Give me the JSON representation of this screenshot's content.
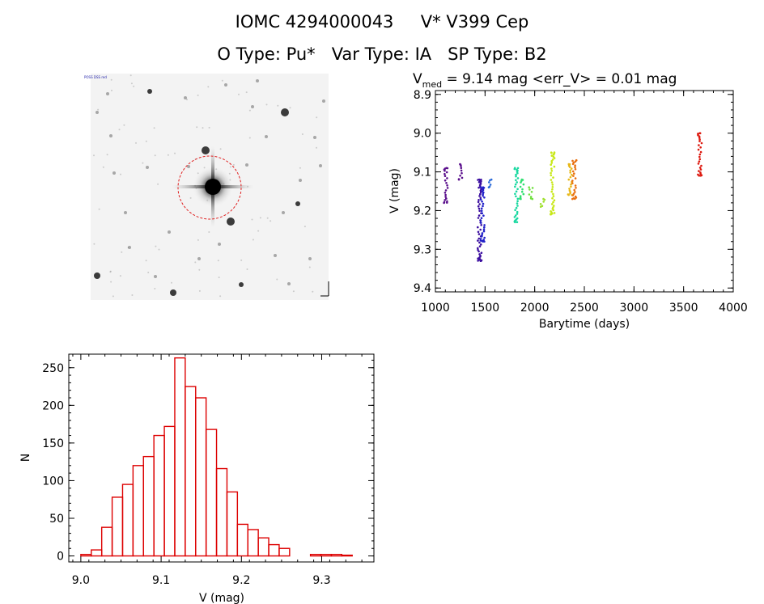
{
  "header": {
    "line1": "IOMC 4294000043     V* V399 Cep",
    "line2": "O Type: Pu*   Var Type: IA   SP Type: B2"
  },
  "image": {
    "corner_top_left": "POSS DSS red",
    "label_top": "",
    "label_bottom": "",
    "label_bottom_left": "",
    "label_bottom_right": ""
  },
  "chart_data": [
    {
      "type": "scatter",
      "title_prefix": "V",
      "title_sub": "med",
      "title_rest": " = 9.14 mag <err_V> = 0.01 mag",
      "xlabel": "Barytime (days)",
      "ylabel": "V (mag)",
      "xlim": [
        1000,
        4000
      ],
      "ylim": [
        9.41,
        8.89
      ],
      "xticks": [
        1000,
        1500,
        2000,
        2500,
        3000,
        3500,
        4000
      ],
      "yticks": [
        8.9,
        9.0,
        9.1,
        9.2,
        9.3,
        9.4
      ],
      "clusters": [
        {
          "x": 1105,
          "ymin": 9.09,
          "ymax": 9.18,
          "color": "#5a0f8c"
        },
        {
          "x": 1255,
          "ymin": 9.08,
          "ymax": 9.12,
          "color": "#5a0f8c"
        },
        {
          "x": 1445,
          "ymin": 9.12,
          "ymax": 9.33,
          "color": "#3c0fa0"
        },
        {
          "x": 1475,
          "ymin": 9.14,
          "ymax": 9.28,
          "color": "#2020c8"
        },
        {
          "x": 1555,
          "ymin": 9.12,
          "ymax": 9.14,
          "color": "#2a6ad8"
        },
        {
          "x": 1815,
          "ymin": 9.09,
          "ymax": 9.23,
          "color": "#18d8a0"
        },
        {
          "x": 1870,
          "ymin": 9.12,
          "ymax": 9.17,
          "color": "#30e070"
        },
        {
          "x": 1960,
          "ymin": 9.14,
          "ymax": 9.17,
          "color": "#70e040"
        },
        {
          "x": 2080,
          "ymin": 9.17,
          "ymax": 9.19,
          "color": "#a0e030"
        },
        {
          "x": 2180,
          "ymin": 9.05,
          "ymax": 9.21,
          "color": "#c8e818"
        },
        {
          "x": 2355,
          "ymin": 9.08,
          "ymax": 9.16,
          "color": "#e8b818"
        },
        {
          "x": 2400,
          "ymin": 9.07,
          "ymax": 9.17,
          "color": "#e87010"
        },
        {
          "x": 3665,
          "ymin": 9.0,
          "ymax": 9.11,
          "color": "#dd1a10"
        }
      ]
    },
    {
      "type": "histogram",
      "xlabel": "V (mag)",
      "ylabel": "N",
      "xlim": [
        8.985,
        9.365
      ],
      "ylim": [
        -8,
        268
      ],
      "xticks": [
        9.0,
        9.1,
        9.2,
        9.3
      ],
      "yticks": [
        0,
        50,
        100,
        150,
        200,
        250
      ],
      "bin_edges": [
        9.0,
        9.013,
        9.026,
        9.039,
        9.052,
        9.065,
        9.078,
        9.091,
        9.104,
        9.117,
        9.13,
        9.143,
        9.156,
        9.169,
        9.182,
        9.195,
        9.208,
        9.221,
        9.234,
        9.247,
        9.26,
        9.273,
        9.286,
        9.299,
        9.312,
        9.325,
        9.338
      ],
      "counts": [
        2,
        8,
        38,
        78,
        95,
        120,
        132,
        160,
        172,
        263,
        225,
        210,
        168,
        116,
        85,
        42,
        35,
        24,
        15,
        10,
        0,
        0,
        2,
        2,
        2,
        1
      ],
      "color": "#dd0000"
    }
  ]
}
